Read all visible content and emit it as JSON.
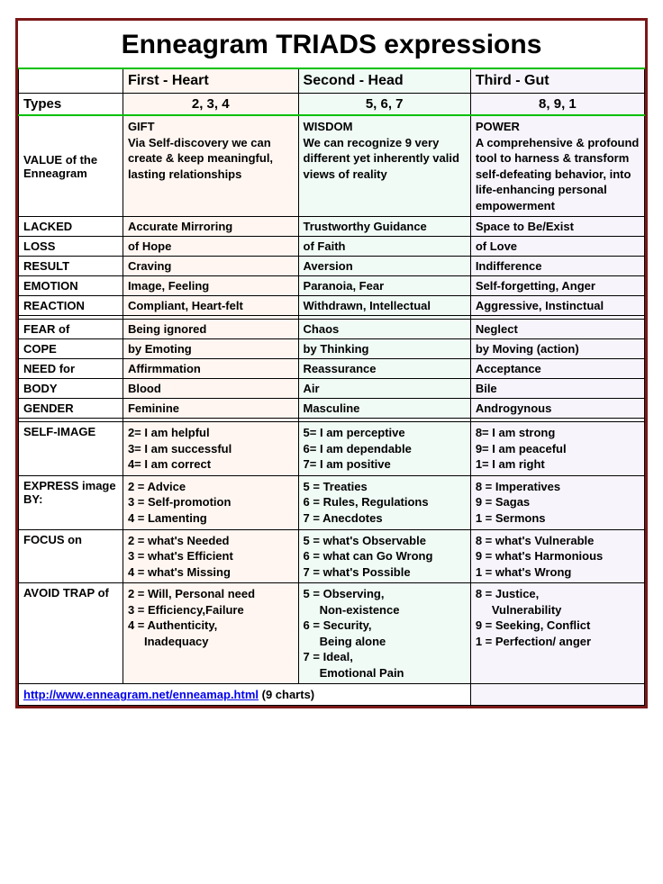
{
  "title": "Enneagram TRIADS expressions",
  "columns": {
    "c0": "",
    "c1": "First - Heart",
    "c2": "Second - Head",
    "c3": "Third - Gut"
  },
  "types_row": {
    "label": "Types",
    "c1": "2, 3, 4",
    "c2": "5, 6, 7",
    "c3": "8, 9, 1"
  },
  "value_row": {
    "label": "VALUE of the Enneagram",
    "c1": "GIFT\nVia Self-discovery we can create & keep meaningful, lasting relationships",
    "c2": "WISDOM\nWe can recognize 9 very different yet inherently valid views of reality",
    "c3": "POWER\nA comprehensive & profound tool to harness & transform self-defeating behavior, into life-enhancing personal empowerment"
  },
  "simple_rows_1": [
    {
      "label": "LACKED",
      "c1": "Accurate Mirroring",
      "c2": "Trustworthy Guidance",
      "c3": "Space to Be/Exist"
    },
    {
      "label": "LOSS",
      "c1": "of Hope",
      "c2": "of Faith",
      "c3": "of Love"
    },
    {
      "label": "RESULT",
      "c1": "Craving",
      "c2": "Aversion",
      "c3": "Indifference"
    },
    {
      "label": "EMOTION",
      "c1": "Image, Feeling",
      "c2": "Paranoia, Fear",
      "c3": "Self-forgetting, Anger"
    },
    {
      "label": "REACTION",
      "c1": "Compliant, Heart-felt",
      "c2": "Withdrawn, Intellectual",
      "c3": "Aggressive, Instinctual"
    }
  ],
  "simple_rows_2": [
    {
      "label": "FEAR of",
      "c1": "Being ignored",
      "c2": "Chaos",
      "c3": "Neglect"
    },
    {
      "label": "COPE",
      "c1": "by Emoting",
      "c2": "by Thinking",
      "c3": "by Moving (action)"
    },
    {
      "label": "NEED for",
      "c1": "Affirmmation",
      "c2": "Reassurance",
      "c3": "Acceptance"
    },
    {
      "label": "BODY",
      "c1": "Blood",
      "c2": "Air",
      "c3": "Bile"
    },
    {
      "label": "GENDER",
      "c1": "Feminine",
      "c2": "Masculine",
      "c3": "Androgynous"
    }
  ],
  "multi_rows": [
    {
      "label": "SELF-IMAGE",
      "c1": "2= I am helpful\n3= I am successful\n4= I am correct",
      "c2": "5= I am perceptive\n6= I am dependable\n7= I am positive",
      "c3": "8= I am strong\n9= I am peaceful\n1= I am right"
    },
    {
      "label": "EXPRESS image BY:",
      "c1": "2 = Advice\n3 = Self-promotion\n4 = Lamenting",
      "c2": "5 = Treaties\n6 = Rules, Regulations\n7 = Anecdotes",
      "c3": "8 = Imperatives\n9 = Sagas\n1 = Sermons"
    },
    {
      "label": "FOCUS on",
      "c1": "2 = what's Needed\n3 = what's Efficient\n4 = what's Missing",
      "c2": "5 = what's Observable\n6 = what can Go Wrong\n7 = what's Possible",
      "c3": "8 = what's Vulnerable\n9 = what's Harmonious\n1 = what's Wrong"
    },
    {
      "label": "AVOID TRAP of",
      "c1": "2 = Will, Personal need\n3 = Efficiency,Failure\n4 = Authenticity,\n     Inadequacy",
      "c2": "5 = Observing,\n     Non-existence\n6 = Security,\n     Being alone\n7 = Ideal,\n     Emotional Pain",
      "c3": "8 = Justice,\n     Vulnerability\n9 = Seeking, Conflict\n1 = Perfection/ anger"
    }
  ],
  "footer": {
    "url": "http://www.enneagram.net/enneamap.html",
    "suffix": " (9 charts)"
  },
  "style": {
    "border_color": "#7a1818",
    "green_rule": "#00c000",
    "col_bg": [
      "#ffffff",
      "#fff6f1",
      "#f0fbf5",
      "#f7f4fb"
    ],
    "font_family": "Verdana",
    "title_fontsize": 30,
    "body_fontsize": 13,
    "header_fontsize": 16
  }
}
